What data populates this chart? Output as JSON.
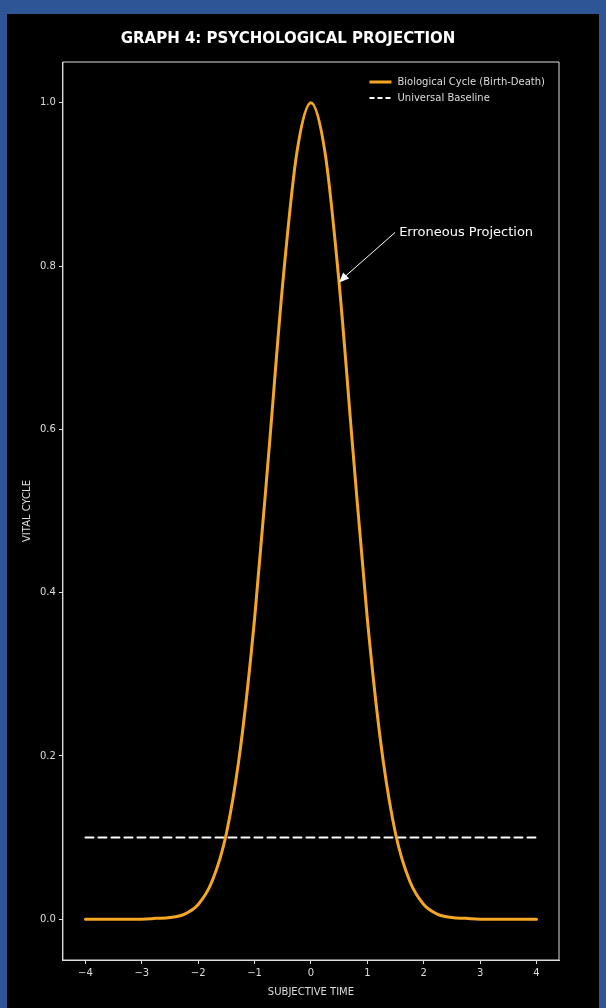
{
  "chart_data": {
    "type": "line",
    "title": "GRAPH 4: PSYCHOLOGICAL PROJECTION",
    "xlabel": "SUBJECTIVE TIME",
    "ylabel": "VITAL CYCLE",
    "x": [
      -4,
      -3.75,
      -3.5,
      -3.25,
      -3,
      -2.75,
      -2.5,
      -2.25,
      -2,
      -1.75,
      -1.5,
      -1.25,
      -1,
      -0.75,
      -0.5,
      -0.25,
      0,
      0.25,
      0.5,
      0.75,
      1,
      1.25,
      1.5,
      1.75,
      2,
      2.25,
      2.5,
      2.75,
      3,
      3.25,
      3.5,
      3.75,
      4
    ],
    "series": [
      {
        "name": "Biological Cycle (Birth-Death)",
        "color": "#f5a623",
        "values": [
          0,
          0,
          0,
          0,
          0,
          0.001,
          0.002,
          0.006,
          0.018,
          0.047,
          0.105,
          0.21,
          0.368,
          0.57,
          0.779,
          0.939,
          1,
          0.939,
          0.779,
          0.57,
          0.368,
          0.21,
          0.105,
          0.047,
          0.018,
          0.006,
          0.002,
          0.001,
          0,
          0,
          0,
          0,
          0
        ]
      },
      {
        "name": "Universal Baseline",
        "color": "#ffffff",
        "type": "line",
        "line_style": "dashed",
        "x": [
          -4,
          4
        ],
        "values": [
          0.1,
          0.1
        ]
      }
    ],
    "annotations": [
      {
        "text": "Erroneous Projection",
        "x": 0.5,
        "y": 0.78
      }
    ],
    "xlim": [
      -4.4,
      4.4
    ],
    "ylim": [
      -0.05,
      1.05
    ],
    "xticks": [
      {
        "value": -4,
        "label": "−4"
      },
      {
        "value": -3,
        "label": "−3"
      },
      {
        "value": -2,
        "label": "−2"
      },
      {
        "value": -1,
        "label": "−1"
      },
      0,
      1,
      2,
      3,
      4
    ],
    "yticks": [
      {
        "value": 0,
        "label": "0.0"
      },
      {
        "value": 0.2,
        "label": "0.2"
      },
      {
        "value": 0.4,
        "label": "0.4"
      },
      {
        "value": 0.6,
        "label": "0.6"
      },
      {
        "value": 0.8,
        "label": "0.8"
      },
      {
        "value": 1,
        "label": "1.0"
      }
    ],
    "grid": false,
    "legend": "top right",
    "marker": "none",
    "line_style": "solid"
  }
}
